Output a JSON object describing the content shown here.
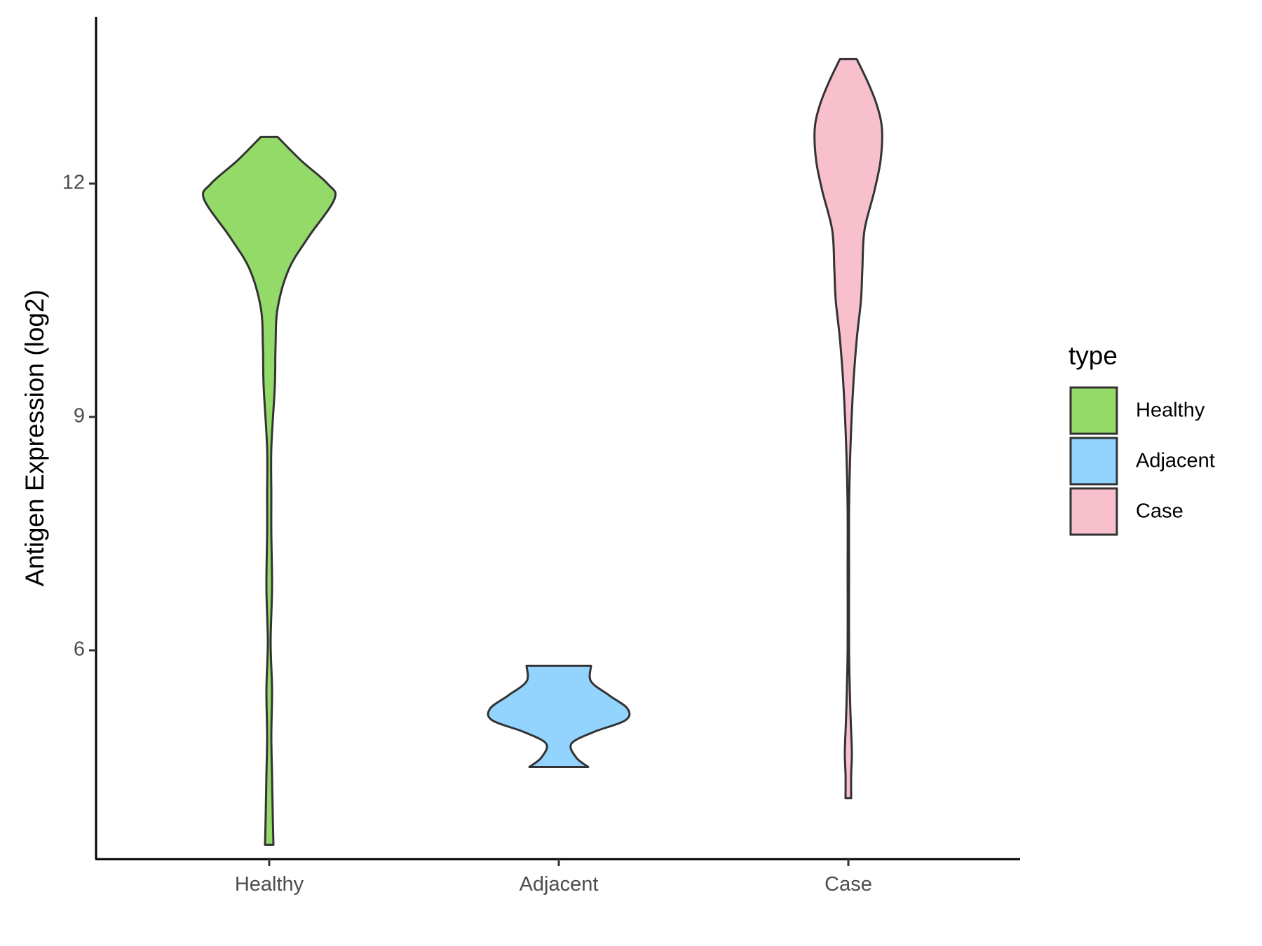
{
  "chart_data": {
    "type": "violin",
    "ylabel": "Antigen Expression (log2)",
    "xlabel": "",
    "categories": [
      "Healthy",
      "Adjacent",
      "Case"
    ],
    "y_ticks": [
      6,
      9,
      12
    ],
    "ylim": [
      3.1,
      14.0
    ],
    "grid": false,
    "legend": {
      "title": "type",
      "placement": "right",
      "entries": [
        {
          "label": "Healthy",
          "color": "#93DA69"
        },
        {
          "label": "Adjacent",
          "color": "#93D4FF"
        },
        {
          "label": "Case",
          "color": "#F7C0CC"
        }
      ]
    },
    "outline_color": "#333333",
    "series": [
      {
        "category": "Healthy",
        "color": "#93DA69",
        "min": 3.5,
        "max": 12.6,
        "profile": [
          [
            3.5,
            0.06
          ],
          [
            3.9,
            0.05
          ],
          [
            4.4,
            0.04
          ],
          [
            4.9,
            0.03
          ],
          [
            5.5,
            0.04
          ],
          [
            6.1,
            0.02
          ],
          [
            6.8,
            0.04
          ],
          [
            7.5,
            0.03
          ],
          [
            8.0,
            0.03
          ],
          [
            8.6,
            0.03
          ],
          [
            9.4,
            0.08
          ],
          [
            9.9,
            0.09
          ],
          [
            10.4,
            0.12
          ],
          [
            10.9,
            0.28
          ],
          [
            11.3,
            0.55
          ],
          [
            11.8,
            0.93
          ],
          [
            12.0,
            0.83
          ],
          [
            12.3,
            0.45
          ],
          [
            12.6,
            0.12
          ]
        ]
      },
      {
        "category": "Adjacent",
        "color": "#93D4FF",
        "min": 4.5,
        "max": 5.8,
        "profile": [
          [
            4.5,
            0.42
          ],
          [
            4.62,
            0.25
          ],
          [
            4.8,
            0.18
          ],
          [
            4.95,
            0.5
          ],
          [
            5.1,
            0.95
          ],
          [
            5.25,
            0.98
          ],
          [
            5.42,
            0.72
          ],
          [
            5.6,
            0.46
          ],
          [
            5.8,
            0.46
          ]
        ]
      },
      {
        "category": "Case",
        "color": "#F7C0CC",
        "min": 4.1,
        "max": 13.6,
        "profile": [
          [
            4.1,
            0.04
          ],
          [
            4.4,
            0.04
          ],
          [
            4.7,
            0.05
          ],
          [
            5.2,
            0.03
          ],
          [
            6.0,
            0.01
          ],
          [
            7.0,
            0.01
          ],
          [
            7.8,
            0.01
          ],
          [
            8.6,
            0.03
          ],
          [
            9.4,
            0.07
          ],
          [
            10.0,
            0.12
          ],
          [
            10.5,
            0.18
          ],
          [
            10.9,
            0.2
          ],
          [
            11.4,
            0.23
          ],
          [
            11.9,
            0.37
          ],
          [
            12.3,
            0.46
          ],
          [
            12.7,
            0.48
          ],
          [
            13.0,
            0.41
          ],
          [
            13.3,
            0.28
          ],
          [
            13.6,
            0.12
          ]
        ]
      }
    ]
  }
}
